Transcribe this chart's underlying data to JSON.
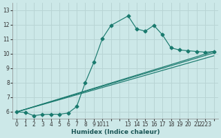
{
  "bg_color": "#cce8e8",
  "grid_color": "#b8d4d4",
  "line_color": "#1a7a6e",
  "xlabel": "Humidex (Indice chaleur)",
  "ylim": [
    5.5,
    13.5
  ],
  "xlim": [
    -0.5,
    23.5
  ],
  "yticks": [
    6,
    7,
    8,
    9,
    10,
    11,
    12,
    13
  ],
  "xtick_labels": [
    "0",
    "1",
    "2",
    "3",
    "4",
    "5",
    "6",
    "7",
    "8",
    "9",
    "1011",
    "",
    "13",
    "14",
    "15",
    "16",
    "17",
    "18",
    "19",
    "20",
    "21",
    "2223"
  ],
  "main_series": {
    "x": [
      0,
      1,
      2,
      3,
      4,
      5,
      6,
      7,
      8,
      9,
      10,
      11,
      13,
      14,
      15,
      16,
      17,
      18,
      19,
      20,
      21,
      22,
      23
    ],
    "y": [
      5.98,
      5.95,
      5.72,
      5.8,
      5.82,
      5.82,
      5.9,
      6.35,
      8.0,
      9.4,
      11.05,
      11.95,
      12.6,
      11.7,
      11.55,
      11.95,
      11.3,
      10.4,
      10.25,
      10.2,
      10.15,
      10.1,
      10.15
    ]
  },
  "linear_series": [
    {
      "x": [
        0,
        23
      ],
      "y": [
        5.98,
        10.15
      ]
    },
    {
      "x": [
        0,
        23
      ],
      "y": [
        5.98,
        10.05
      ]
    },
    {
      "x": [
        0,
        23
      ],
      "y": [
        5.98,
        9.85
      ]
    }
  ]
}
